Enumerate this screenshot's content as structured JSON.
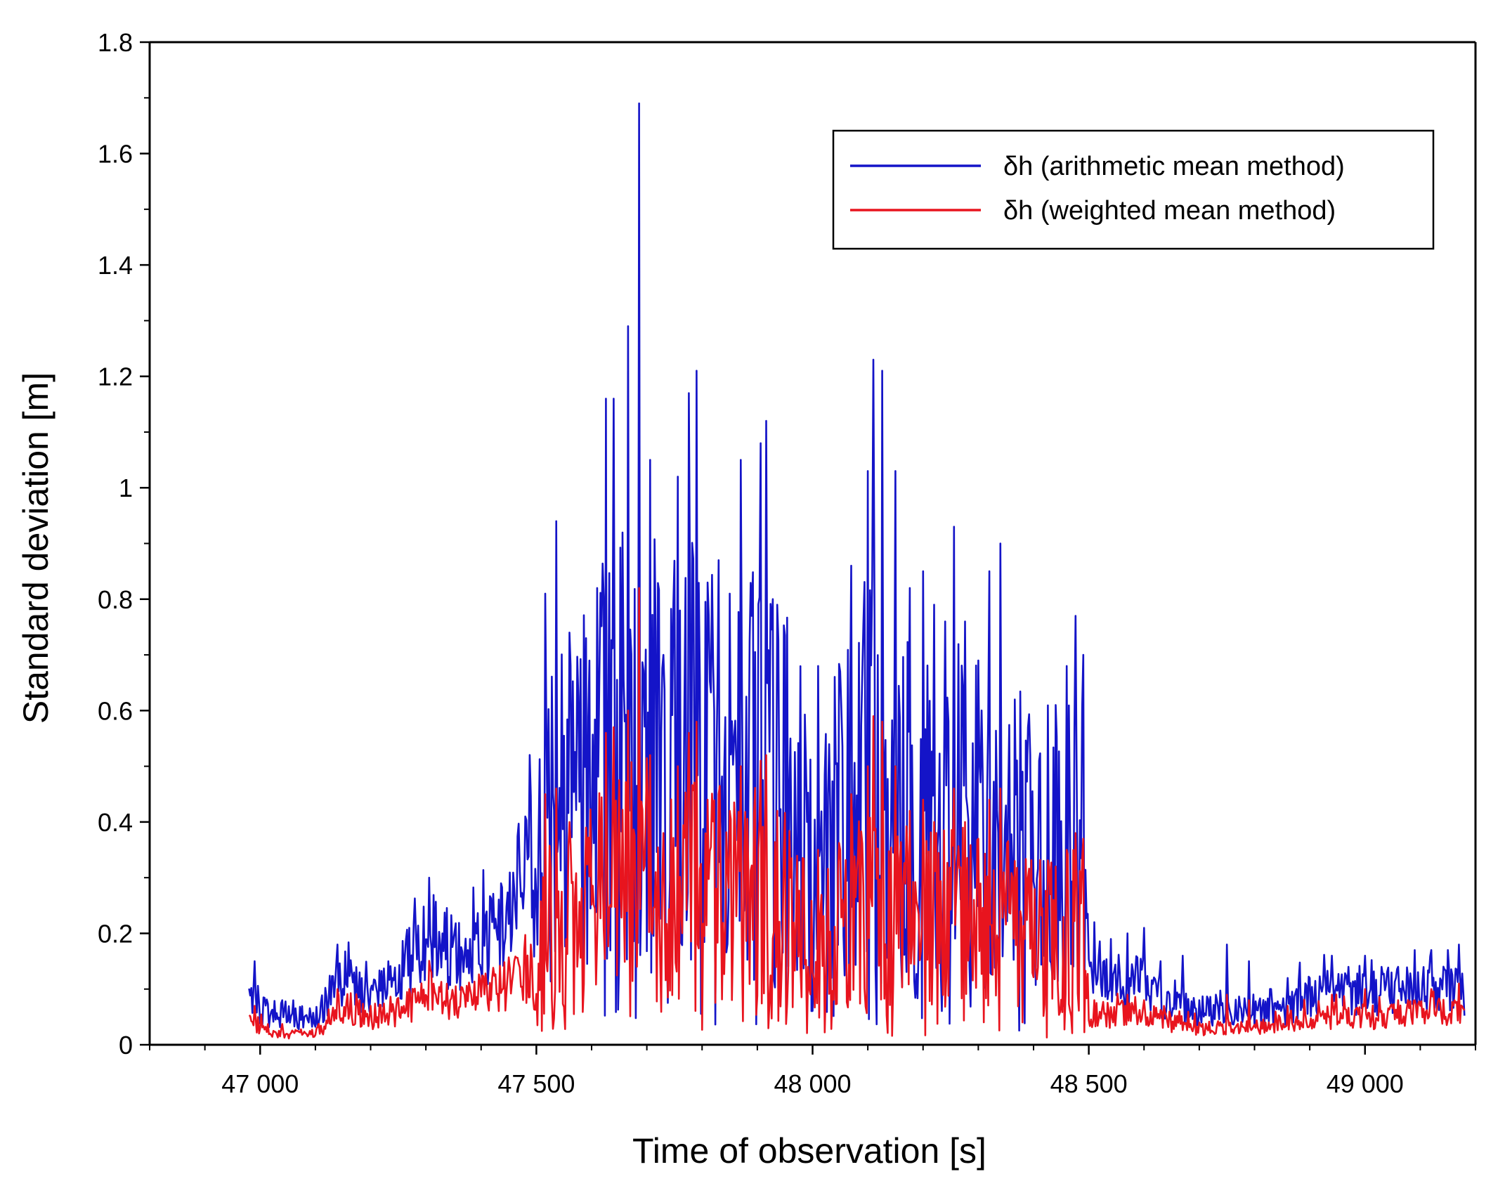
{
  "chart_data": {
    "type": "line",
    "title": "",
    "xlabel": "Time of observation [s]",
    "ylabel": "Standard deviation [m]",
    "xlim": [
      46800,
      49200
    ],
    "ylim": [
      0,
      1.8
    ],
    "x_ticks": [
      47000,
      47500,
      48000,
      48500,
      49000
    ],
    "x_tick_labels": [
      "47 000",
      "47 500",
      "48 000",
      "48 500",
      "49 000"
    ],
    "y_ticks": [
      0,
      0.2,
      0.4,
      0.6,
      0.8,
      1,
      1.2,
      1.4,
      1.6,
      1.8
    ],
    "y_tick_labels": [
      "0",
      "0.2",
      "0.4",
      "0.6",
      "0.8",
      "1",
      "1.2",
      "1.4",
      "1.6",
      "1.8"
    ],
    "legend_position": "top-right",
    "x_range_data": [
      46980,
      49180
    ],
    "series": [
      {
        "name": "δh (arithmetic mean method)",
        "color": "#1414c8",
        "envelope": [
          [
            46980,
            0.08
          ],
          [
            47000,
            0.06
          ],
          [
            47050,
            0.05
          ],
          [
            47100,
            0.05
          ],
          [
            47150,
            0.12
          ],
          [
            47200,
            0.08
          ],
          [
            47250,
            0.12
          ],
          [
            47300,
            0.2
          ],
          [
            47350,
            0.16
          ],
          [
            47400,
            0.17
          ],
          [
            47450,
            0.24
          ],
          [
            47490,
            0.32
          ],
          [
            47500,
            0.22
          ],
          [
            47510,
            0.45
          ],
          [
            47550,
            0.5
          ],
          [
            47600,
            0.55
          ],
          [
            47650,
            0.62
          ],
          [
            47700,
            0.64
          ],
          [
            47750,
            0.58
          ],
          [
            47800,
            0.62
          ],
          [
            47850,
            0.55
          ],
          [
            47900,
            0.6
          ],
          [
            47950,
            0.52
          ],
          [
            48000,
            0.42
          ],
          [
            48050,
            0.48
          ],
          [
            48100,
            0.58
          ],
          [
            48150,
            0.5
          ],
          [
            48200,
            0.48
          ],
          [
            48250,
            0.5
          ],
          [
            48300,
            0.45
          ],
          [
            48350,
            0.45
          ],
          [
            48400,
            0.4
          ],
          [
            48450,
            0.42
          ],
          [
            48490,
            0.45
          ],
          [
            48500,
            0.12
          ],
          [
            48550,
            0.1
          ],
          [
            48600,
            0.11
          ],
          [
            48650,
            0.07
          ],
          [
            48700,
            0.06
          ],
          [
            48750,
            0.06
          ],
          [
            48800,
            0.06
          ],
          [
            48850,
            0.06
          ],
          [
            48900,
            0.09
          ],
          [
            48950,
            0.09
          ],
          [
            49000,
            0.09
          ],
          [
            49050,
            0.1
          ],
          [
            49100,
            0.1
          ],
          [
            49150,
            0.1
          ],
          [
            49180,
            0.09
          ]
        ],
        "peaks": [
          [
            46990,
            0.15
          ],
          [
            47040,
            0.08
          ],
          [
            47140,
            0.18
          ],
          [
            47180,
            0.13
          ],
          [
            47240,
            0.12
          ],
          [
            47270,
            0.21
          ],
          [
            47305,
            0.3
          ],
          [
            47330,
            0.2
          ],
          [
            47380,
            0.19
          ],
          [
            47420,
            0.22
          ],
          [
            47460,
            0.28
          ],
          [
            47480,
            0.41
          ],
          [
            47515,
            0.81
          ],
          [
            47535,
            0.94
          ],
          [
            47560,
            0.74
          ],
          [
            47590,
            0.73
          ],
          [
            47610,
            0.82
          ],
          [
            47625,
            1.16
          ],
          [
            47640,
            1.16
          ],
          [
            47665,
            1.29
          ],
          [
            47685,
            1.69
          ],
          [
            47705,
            1.05
          ],
          [
            47730,
            0.7
          ],
          [
            47755,
            1.02
          ],
          [
            47775,
            1.17
          ],
          [
            47790,
            1.21
          ],
          [
            47810,
            0.83
          ],
          [
            47830,
            0.87
          ],
          [
            47850,
            0.81
          ],
          [
            47870,
            1.05
          ],
          [
            47890,
            0.77
          ],
          [
            47905,
            1.08
          ],
          [
            47915,
            1.12
          ],
          [
            47935,
            0.79
          ],
          [
            47960,
            0.55
          ],
          [
            47990,
            0.4
          ],
          [
            48010,
            0.68
          ],
          [
            48050,
            0.67
          ],
          [
            48070,
            0.86
          ],
          [
            48100,
            1.03
          ],
          [
            48110,
            1.23
          ],
          [
            48125,
            1.21
          ],
          [
            48150,
            1.03
          ],
          [
            48175,
            0.82
          ],
          [
            48200,
            0.85
          ],
          [
            48220,
            0.79
          ],
          [
            48240,
            0.76
          ],
          [
            48255,
            0.93
          ],
          [
            48275,
            0.76
          ],
          [
            48300,
            0.69
          ],
          [
            48320,
            0.85
          ],
          [
            48340,
            0.9
          ],
          [
            48365,
            0.62
          ],
          [
            48390,
            0.57
          ],
          [
            48410,
            0.51
          ],
          [
            48440,
            0.61
          ],
          [
            48460,
            0.68
          ],
          [
            48475,
            0.77
          ],
          [
            48490,
            0.7
          ],
          [
            48510,
            0.22
          ],
          [
            48540,
            0.19
          ],
          [
            48570,
            0.2
          ],
          [
            48600,
            0.21
          ],
          [
            48630,
            0.15
          ],
          [
            48670,
            0.16
          ],
          [
            48700,
            0.08
          ],
          [
            48730,
            0.09
          ],
          [
            48750,
            0.18
          ],
          [
            48790,
            0.15
          ],
          [
            48830,
            0.1
          ],
          [
            48860,
            0.12
          ],
          [
            48900,
            0.12
          ],
          [
            48940,
            0.16
          ],
          [
            48970,
            0.14
          ],
          [
            49000,
            0.16
          ],
          [
            49030,
            0.14
          ],
          [
            49060,
            0.14
          ],
          [
            49090,
            0.17
          ],
          [
            49120,
            0.17
          ],
          [
            49150,
            0.17
          ],
          [
            49170,
            0.18
          ]
        ]
      },
      {
        "name": "δh (weighted mean method)",
        "color": "#e8141e",
        "envelope": [
          [
            46980,
            0.04
          ],
          [
            47000,
            0.03
          ],
          [
            47050,
            0.02
          ],
          [
            47100,
            0.02
          ],
          [
            47150,
            0.07
          ],
          [
            47200,
            0.05
          ],
          [
            47250,
            0.06
          ],
          [
            47300,
            0.08
          ],
          [
            47350,
            0.08
          ],
          [
            47400,
            0.09
          ],
          [
            47450,
            0.11
          ],
          [
            47490,
            0.12
          ],
          [
            47500,
            0.11
          ],
          [
            47510,
            0.25
          ],
          [
            47550,
            0.27
          ],
          [
            47600,
            0.3
          ],
          [
            47650,
            0.33
          ],
          [
            47700,
            0.35
          ],
          [
            47750,
            0.32
          ],
          [
            47800,
            0.34
          ],
          [
            47850,
            0.3
          ],
          [
            47900,
            0.32
          ],
          [
            47950,
            0.28
          ],
          [
            48000,
            0.22
          ],
          [
            48050,
            0.25
          ],
          [
            48100,
            0.3
          ],
          [
            48150,
            0.27
          ],
          [
            48200,
            0.25
          ],
          [
            48250,
            0.27
          ],
          [
            48300,
            0.25
          ],
          [
            48350,
            0.25
          ],
          [
            48400,
            0.22
          ],
          [
            48450,
            0.23
          ],
          [
            48490,
            0.25
          ],
          [
            48500,
            0.05
          ],
          [
            48550,
            0.05
          ],
          [
            48600,
            0.06
          ],
          [
            48650,
            0.04
          ],
          [
            48700,
            0.03
          ],
          [
            48750,
            0.03
          ],
          [
            48800,
            0.03
          ],
          [
            48850,
            0.04
          ],
          [
            48900,
            0.05
          ],
          [
            48950,
            0.05
          ],
          [
            49000,
            0.05
          ],
          [
            49050,
            0.05
          ],
          [
            49100,
            0.06
          ],
          [
            49150,
            0.06
          ],
          [
            49180,
            0.05
          ]
        ],
        "peaks": [
          [
            46990,
            0.07
          ],
          [
            47140,
            0.1
          ],
          [
            47180,
            0.08
          ],
          [
            47270,
            0.1
          ],
          [
            47310,
            0.13
          ],
          [
            47380,
            0.1
          ],
          [
            47420,
            0.12
          ],
          [
            47460,
            0.15
          ],
          [
            47490,
            0.18
          ],
          [
            47515,
            0.45
          ],
          [
            47535,
            0.46
          ],
          [
            47560,
            0.4
          ],
          [
            47590,
            0.39
          ],
          [
            47625,
            0.56
          ],
          [
            47640,
            0.57
          ],
          [
            47665,
            0.6
          ],
          [
            47685,
            0.82
          ],
          [
            47705,
            0.52
          ],
          [
            47730,
            0.38
          ],
          [
            47755,
            0.5
          ],
          [
            47775,
            0.56
          ],
          [
            47790,
            0.58
          ],
          [
            47810,
            0.44
          ],
          [
            47830,
            0.45
          ],
          [
            47850,
            0.42
          ],
          [
            47870,
            0.5
          ],
          [
            47905,
            0.51
          ],
          [
            47915,
            0.52
          ],
          [
            47935,
            0.42
          ],
          [
            47960,
            0.3
          ],
          [
            48010,
            0.35
          ],
          [
            48050,
            0.35
          ],
          [
            48070,
            0.45
          ],
          [
            48100,
            0.5
          ],
          [
            48110,
            0.59
          ],
          [
            48125,
            0.58
          ],
          [
            48150,
            0.5
          ],
          [
            48175,
            0.42
          ],
          [
            48200,
            0.44
          ],
          [
            48220,
            0.4
          ],
          [
            48255,
            0.46
          ],
          [
            48275,
            0.4
          ],
          [
            48300,
            0.37
          ],
          [
            48320,
            0.44
          ],
          [
            48340,
            0.46
          ],
          [
            48365,
            0.33
          ],
          [
            48390,
            0.3
          ],
          [
            48440,
            0.32
          ],
          [
            48460,
            0.35
          ],
          [
            48475,
            0.38
          ],
          [
            48490,
            0.37
          ],
          [
            48510,
            0.08
          ],
          [
            48570,
            0.09
          ],
          [
            48600,
            0.08
          ],
          [
            48700,
            0.04
          ],
          [
            48750,
            0.09
          ],
          [
            48790,
            0.08
          ],
          [
            48860,
            0.07
          ],
          [
            48940,
            0.09
          ],
          [
            49000,
            0.1
          ],
          [
            49060,
            0.08
          ],
          [
            49120,
            0.1
          ],
          [
            49170,
            0.11
          ]
        ]
      }
    ]
  }
}
